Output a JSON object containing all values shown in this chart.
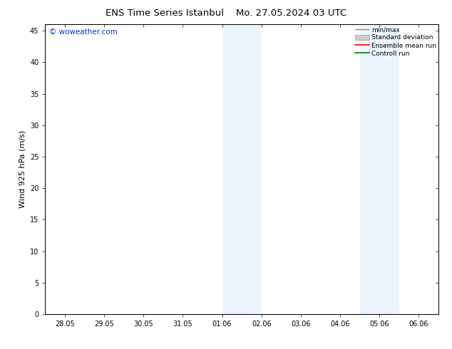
{
  "title_left": "ENS Time Series Istanbul",
  "title_right": "Mo. 27.05.2024 03 UTC",
  "ylabel": "Wind 925 hPa (m/s)",
  "ylim": [
    0,
    46
  ],
  "yticks": [
    0,
    5,
    10,
    15,
    20,
    25,
    30,
    35,
    40,
    45
  ],
  "watermark": "© woweather.com",
  "background_color": "#ffffff",
  "plot_bg_color": "#ffffff",
  "shade_color": "#ddeeff",
  "shade_alpha": 0.55,
  "xtick_labels": [
    "28.05",
    "29.05",
    "30.05",
    "31.05",
    "01.06",
    "02.06",
    "03.06",
    "04.06",
    "05.06",
    "06.06"
  ],
  "xtick_positions": [
    0,
    1,
    2,
    3,
    4,
    5,
    6,
    7,
    8,
    9
  ],
  "legend_labels": [
    "min/max",
    "Standard deviation",
    "Ensemble mean run",
    "Controll run"
  ],
  "legend_colors": [
    "#888888",
    "#cccccc",
    "#ff0000",
    "#008000"
  ],
  "title_fontsize": 9.5,
  "tick_fontsize": 7,
  "ylabel_fontsize": 8,
  "watermark_color": "#0033cc",
  "watermark_fontsize": 7.5,
  "border_color": "#000000",
  "shade_bands": [
    [
      4.0,
      4.5
    ],
    [
      4.5,
      5.0
    ],
    [
      7.5,
      8.0
    ],
    [
      8.0,
      8.5
    ]
  ]
}
